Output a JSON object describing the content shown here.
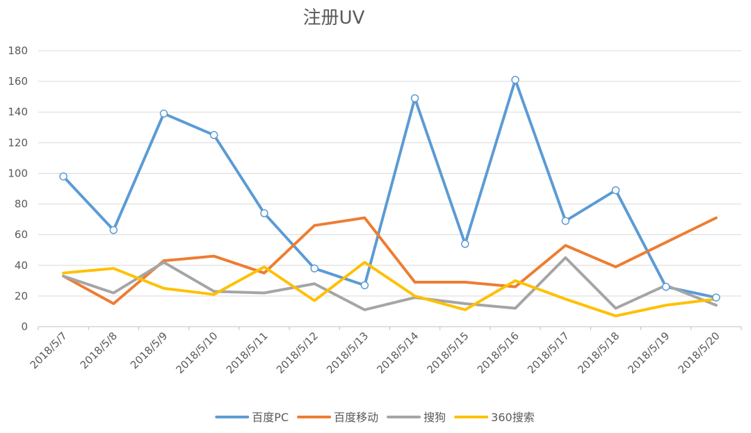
{
  "chart_data": {
    "type": "line",
    "title": "注册UV",
    "xlabel": "",
    "ylabel": "",
    "categories": [
      "2018/5/7",
      "2018/5/8",
      "2018/5/9",
      "2018/5/10",
      "2018/5/11",
      "2018/5/12",
      "2018/5/13",
      "2018/5/14",
      "2018/5/15",
      "2018/5/16",
      "2018/5/17",
      "2018/5/18",
      "2018/5/19",
      "2018/5/20"
    ],
    "ylim": [
      0,
      180
    ],
    "yticks": [
      0,
      20,
      40,
      60,
      80,
      100,
      120,
      140,
      160,
      180
    ],
    "grid": true,
    "legend_position": "bottom",
    "series": [
      {
        "name": "百度PC",
        "color": "#5B9BD5",
        "markers": true,
        "values": [
          98,
          63,
          139,
          125,
          74,
          38,
          27,
          149,
          54,
          161,
          69,
          89,
          26,
          19
        ]
      },
      {
        "name": "百度移动",
        "color": "#ED7D31",
        "markers": false,
        "values": [
          33,
          15,
          43,
          46,
          35,
          66,
          71,
          29,
          29,
          26,
          53,
          39,
          55,
          71
        ]
      },
      {
        "name": "搜狗",
        "color": "#A5A5A5",
        "markers": false,
        "values": [
          33,
          22,
          42,
          23,
          22,
          28,
          11,
          19,
          15,
          12,
          45,
          12,
          27,
          14
        ]
      },
      {
        "name": "360搜索",
        "color": "#FFC000",
        "markers": false,
        "values": [
          35,
          38,
          25,
          21,
          39,
          17,
          42,
          20,
          11,
          30,
          18,
          7,
          14,
          18
        ]
      }
    ]
  }
}
